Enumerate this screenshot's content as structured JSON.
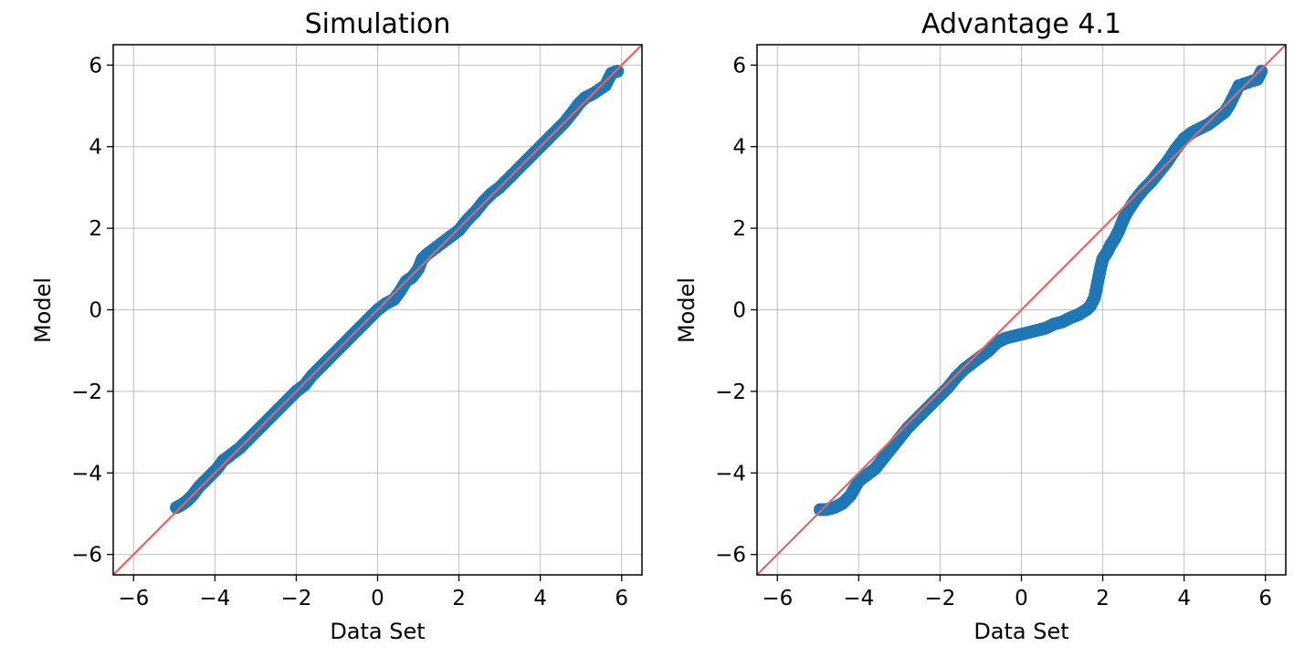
{
  "chart_data": [
    {
      "type": "scatter",
      "title": "Simulation",
      "xlabel": "Data Set",
      "ylabel": "Model",
      "xlim": [
        -6.5,
        6.5
      ],
      "ylim": [
        -6.5,
        6.5
      ],
      "xticks": [
        -6,
        -4,
        -2,
        0,
        2,
        4,
        6
      ],
      "yticks": [
        -6,
        -4,
        -2,
        0,
        2,
        4,
        6
      ],
      "xtick_labels": [
        "−6",
        "−4",
        "−2",
        "0",
        "2",
        "4",
        "6"
      ],
      "ytick_labels": [
        "−6",
        "−4",
        "−2",
        "0",
        "2",
        "4",
        "6"
      ],
      "grid": true,
      "reference_line": {
        "slope": 1,
        "intercept": 0,
        "color": "#e06666"
      },
      "marker_color": "#1f77b4",
      "series": [
        {
          "x": [
            -4.95,
            -4.85,
            -4.7,
            -4.55,
            -4.4,
            -4.25,
            -4.1,
            -3.95,
            -3.8,
            -3.6,
            -3.4,
            -3.2,
            -3.0,
            -2.8,
            -2.6,
            -2.4,
            -2.2,
            -2.0,
            -1.8,
            -1.6,
            -1.4,
            -1.2,
            -1.0,
            -0.8,
            -0.6,
            -0.4,
            -0.2,
            0.0,
            0.2,
            0.4,
            0.55,
            0.7,
            0.85,
            1.0,
            1.1,
            1.2,
            1.4,
            1.6,
            1.8,
            2.0,
            2.2,
            2.4,
            2.6,
            2.8,
            3.0,
            3.2,
            3.4,
            3.6,
            3.8,
            4.0,
            4.2,
            4.4,
            4.6,
            4.8,
            4.95,
            5.1,
            5.3,
            5.6,
            5.75,
            5.9
          ],
          "y": [
            -4.85,
            -4.8,
            -4.7,
            -4.55,
            -4.35,
            -4.2,
            -4.05,
            -3.9,
            -3.7,
            -3.55,
            -3.4,
            -3.2,
            -3.0,
            -2.8,
            -2.6,
            -2.4,
            -2.2,
            -2.0,
            -1.85,
            -1.6,
            -1.4,
            -1.2,
            -1.0,
            -0.8,
            -0.6,
            -0.4,
            -0.2,
            0.0,
            0.15,
            0.25,
            0.45,
            0.7,
            0.8,
            1.0,
            1.25,
            1.35,
            1.5,
            1.65,
            1.8,
            1.95,
            2.2,
            2.4,
            2.65,
            2.85,
            3.0,
            3.2,
            3.4,
            3.6,
            3.8,
            4.0,
            4.2,
            4.4,
            4.6,
            4.85,
            5.05,
            5.2,
            5.3,
            5.5,
            5.8,
            5.85
          ]
        }
      ]
    },
    {
      "type": "scatter",
      "title": "Advantage 4.1",
      "xlabel": "Data Set",
      "ylabel": "Model",
      "xlim": [
        -6.5,
        6.5
      ],
      "ylim": [
        -6.5,
        6.5
      ],
      "xticks": [
        -6,
        -4,
        -2,
        0,
        2,
        4,
        6
      ],
      "yticks": [
        -6,
        -4,
        -2,
        0,
        2,
        4,
        6
      ],
      "xtick_labels": [
        "−6",
        "−4",
        "−2",
        "0",
        "2",
        "4",
        "6"
      ],
      "ytick_labels": [
        "−6",
        "−4",
        "−2",
        "0",
        "2",
        "4",
        "6"
      ],
      "grid": true,
      "reference_line": {
        "slope": 1,
        "intercept": 0,
        "color": "#e06666"
      },
      "marker_color": "#1f77b4",
      "series": [
        {
          "x": [
            -4.95,
            -4.8,
            -4.6,
            -4.4,
            -4.2,
            -4.0,
            -3.8,
            -3.6,
            -3.4,
            -3.2,
            -3.0,
            -2.8,
            -2.6,
            -2.4,
            -2.2,
            -2.0,
            -1.8,
            -1.6,
            -1.4,
            -1.2,
            -1.0,
            -0.8,
            -0.6,
            -0.4,
            -0.2,
            0.0,
            0.2,
            0.4,
            0.6,
            0.8,
            1.0,
            1.2,
            1.4,
            1.6,
            1.7,
            1.8,
            1.85,
            1.9,
            1.95,
            2.0,
            2.1,
            2.2,
            2.3,
            2.4,
            2.5,
            2.6,
            2.7,
            2.8,
            3.0,
            3.2,
            3.4,
            3.6,
            3.8,
            4.0,
            4.2,
            4.4,
            4.6,
            4.8,
            5.0,
            5.1,
            5.2,
            5.35,
            5.8,
            5.9
          ],
          "y": [
            -4.9,
            -4.9,
            -4.85,
            -4.75,
            -4.55,
            -4.2,
            -4.05,
            -3.9,
            -3.65,
            -3.4,
            -3.15,
            -2.9,
            -2.7,
            -2.5,
            -2.3,
            -2.1,
            -1.9,
            -1.65,
            -1.45,
            -1.3,
            -1.15,
            -1.0,
            -0.8,
            -0.7,
            -0.65,
            -0.6,
            -0.55,
            -0.5,
            -0.45,
            -0.35,
            -0.3,
            -0.2,
            -0.12,
            0.0,
            0.1,
            0.3,
            0.55,
            0.8,
            1.05,
            1.25,
            1.4,
            1.6,
            1.75,
            1.95,
            2.2,
            2.4,
            2.55,
            2.7,
            2.95,
            3.15,
            3.4,
            3.65,
            3.95,
            4.2,
            4.35,
            4.45,
            4.55,
            4.7,
            4.85,
            5.0,
            5.2,
            5.5,
            5.65,
            5.85
          ]
        }
      ]
    }
  ]
}
